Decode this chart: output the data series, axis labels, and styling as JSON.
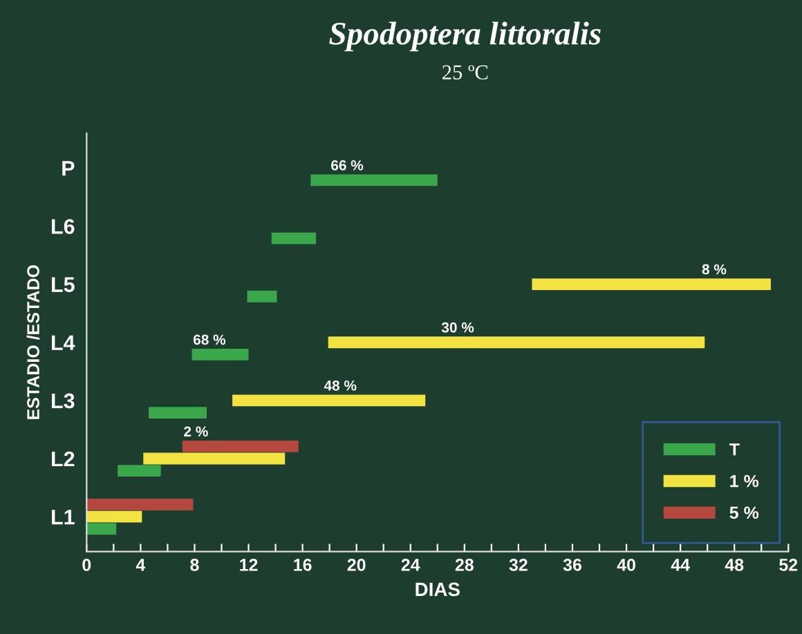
{
  "chart_data": {
    "type": "bar",
    "orientation": "horizontal",
    "title": "Spodoptera littoralis",
    "subtitle": "25 ºC",
    "xlabel": "DIAS",
    "ylabel": "ESTADIO /ESTADO",
    "categories": [
      "P",
      "L6",
      "L5",
      "L4",
      "L3",
      "L2",
      "L1"
    ],
    "series": [
      {
        "name": "T",
        "color": "#3aa84a",
        "base": [
          16.6,
          13.7,
          11.9,
          7.8,
          4.6,
          2.3,
          0
        ],
        "values": [
          9.4,
          3.3,
          2.2,
          4.2,
          4.3,
          3.2,
          2.2
        ]
      },
      {
        "name": "1 %",
        "color": "#f2e342",
        "base": [
          null,
          null,
          33.0,
          17.9,
          10.8,
          4.2,
          0
        ],
        "values": [
          null,
          null,
          17.7,
          27.9,
          14.3,
          10.5,
          4.1
        ]
      },
      {
        "name": "5 %",
        "color": "#b5483e",
        "base": [
          null,
          null,
          null,
          null,
          null,
          7.1,
          0
        ],
        "values": [
          null,
          null,
          null,
          null,
          null,
          8.6,
          7.9
        ]
      }
    ],
    "annotations": [
      {
        "text": "66 %",
        "x": 19.3,
        "y": "P"
      },
      {
        "text": "68 %",
        "x": 9.1,
        "y": "L4"
      },
      {
        "text": "8 %",
        "x": 46.5,
        "y": "L5"
      },
      {
        "text": "30 %",
        "x": 27.5,
        "y": "L4"
      },
      {
        "text": "48 %",
        "x": 18.8,
        "y": "L3"
      },
      {
        "text": "2 %",
        "x": 8.1,
        "y": "L2"
      }
    ],
    "xlim": [
      0,
      52
    ],
    "xticks": [
      0,
      {
        "value": 2,
        "label": null
      },
      4,
      {
        "value": 6,
        "label": null
      },
      8,
      {
        "value": 10,
        "label": null
      },
      12,
      {
        "value": 14,
        "label": null
      },
      16,
      {
        "value": 18,
        "label": null
      },
      20,
      {
        "value": 22,
        "label": null
      },
      24,
      {
        "value": 26,
        "label": null
      },
      28,
      {
        "value": 30,
        "label": null
      },
      32,
      {
        "value": 34,
        "label": null
      },
      36,
      {
        "value": 38,
        "label": null
      },
      40,
      {
        "value": 42,
        "label": null
      },
      44,
      {
        "value": 46,
        "label": null
      },
      48,
      {
        "value": 50,
        "label": null
      },
      52
    ],
    "legend": "bottom right",
    "grid": false
  }
}
